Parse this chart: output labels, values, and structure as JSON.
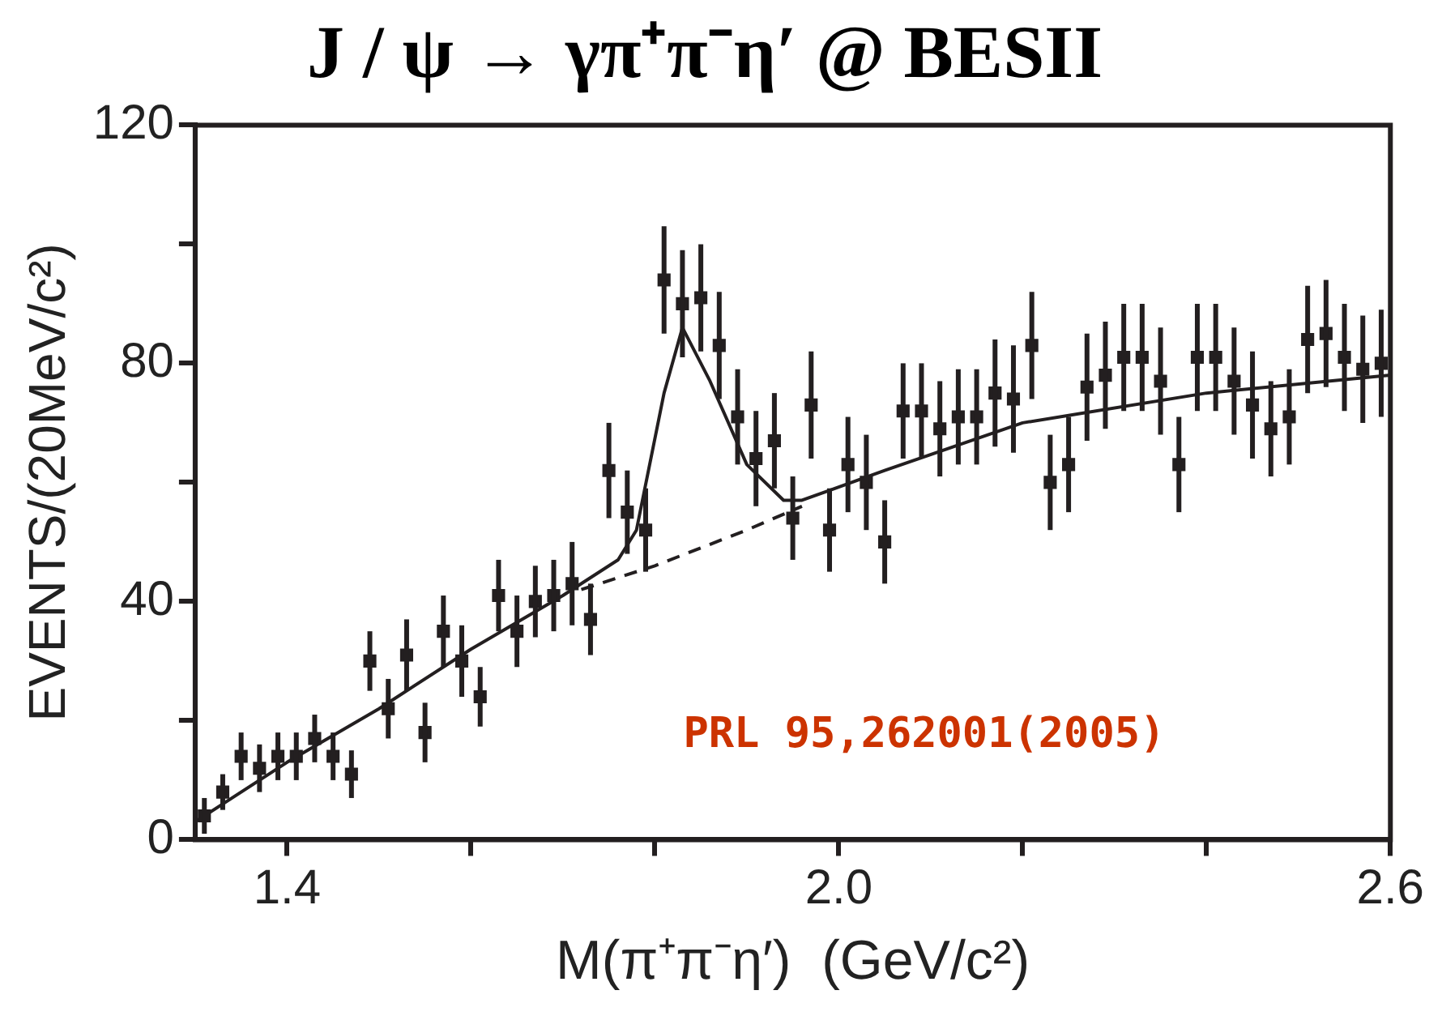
{
  "chart_data": {
    "type": "scatter",
    "title": "J / ψ → γπ⁺π⁻η′ @ BESII",
    "xlabel": "M(π⁺π⁻η′)  (GeV/c²)",
    "ylabel": "EVENTS/(20MeV/c²)",
    "annotations": [
      "PRL 95,262001(2005)"
    ],
    "xlim": [
      1.3,
      2.6
    ],
    "xticks": [
      {
        "value": 1.4,
        "label": "1.4"
      },
      {
        "value": 1.6,
        "label": null
      },
      {
        "value": 1.8,
        "label": null
      },
      {
        "value": 2.0,
        "label": "2.0"
      },
      {
        "value": 2.2,
        "label": null
      },
      {
        "value": 2.4,
        "label": null
      },
      {
        "value": 2.6,
        "label": "2.6"
      }
    ],
    "ylim": [
      0,
      120
    ],
    "yticks": [
      0,
      {
        "value": 20,
        "label": null
      },
      40,
      {
        "value": 60,
        "label": null
      },
      80,
      {
        "value": 100,
        "label": null
      },
      120
    ],
    "grid": false,
    "legend": false,
    "series": [
      {
        "marker": "square",
        "color": "#231f20",
        "x": [
          1.31,
          1.33,
          1.35,
          1.37,
          1.39,
          1.41,
          1.43,
          1.45,
          1.47,
          1.49,
          1.51,
          1.53,
          1.55,
          1.57,
          1.59,
          1.61,
          1.63,
          1.65,
          1.67,
          1.69,
          1.71,
          1.73,
          1.75,
          1.77,
          1.79,
          1.81,
          1.83,
          1.85,
          1.87,
          1.89,
          1.91,
          1.93,
          1.95,
          1.97,
          1.99,
          2.01,
          2.03,
          2.05,
          2.07,
          2.09,
          2.11,
          2.13,
          2.15,
          2.17,
          2.19,
          2.21,
          2.23,
          2.25,
          2.27,
          2.29,
          2.31,
          2.33,
          2.35,
          2.37,
          2.39,
          2.41,
          2.43,
          2.45,
          2.47,
          2.49,
          2.51,
          2.53,
          2.55,
          2.57,
          2.59
        ],
        "values": [
          4,
          8,
          14,
          12,
          14,
          14,
          17,
          14,
          11,
          30,
          22,
          31,
          18,
          35,
          30,
          24,
          41,
          35,
          40,
          41,
          43,
          37,
          62,
          55,
          52,
          94,
          90,
          91,
          83,
          71,
          64,
          67,
          54,
          73,
          52,
          63,
          60,
          50,
          72,
          72,
          69,
          71,
          71,
          75,
          74,
          83,
          60,
          63,
          76,
          78,
          81,
          81,
          77,
          63,
          81,
          81,
          77,
          73,
          69,
          71,
          84,
          85,
          81,
          79,
          80
        ],
        "errors": [
          3,
          3,
          4,
          4,
          4,
          4,
          4,
          4,
          4,
          5,
          5,
          6,
          5,
          6,
          6,
          5,
          6,
          6,
          6,
          6,
          7,
          6,
          8,
          7,
          7,
          9,
          9,
          9,
          9,
          8,
          8,
          8,
          7,
          9,
          7,
          8,
          8,
          7,
          8,
          8,
          8,
          8,
          8,
          9,
          9,
          9,
          8,
          8,
          9,
          9,
          9,
          9,
          9,
          8,
          9,
          9,
          9,
          9,
          8,
          8,
          9,
          9,
          9,
          9,
          9
        ]
      },
      {
        "type": "line",
        "marker": "none",
        "line_style": "solid",
        "color": "#231f20",
        "x": [
          1.3,
          1.4,
          1.5,
          1.6,
          1.7,
          1.76,
          1.78,
          1.81,
          1.83,
          1.86,
          1.9,
          1.94,
          1.96,
          2.05,
          2.2,
          2.4,
          2.6
        ],
        "values": [
          3,
          13,
          22,
          32,
          41,
          47,
          52,
          75,
          86,
          77,
          63,
          57,
          57,
          62,
          70,
          75,
          78
        ]
      },
      {
        "type": "line",
        "marker": "none",
        "line_style": "dashed",
        "color": "#231f20",
        "x": [
          1.72,
          1.8,
          1.9,
          1.96
        ],
        "values": [
          42,
          46,
          52,
          56
        ]
      }
    ]
  }
}
